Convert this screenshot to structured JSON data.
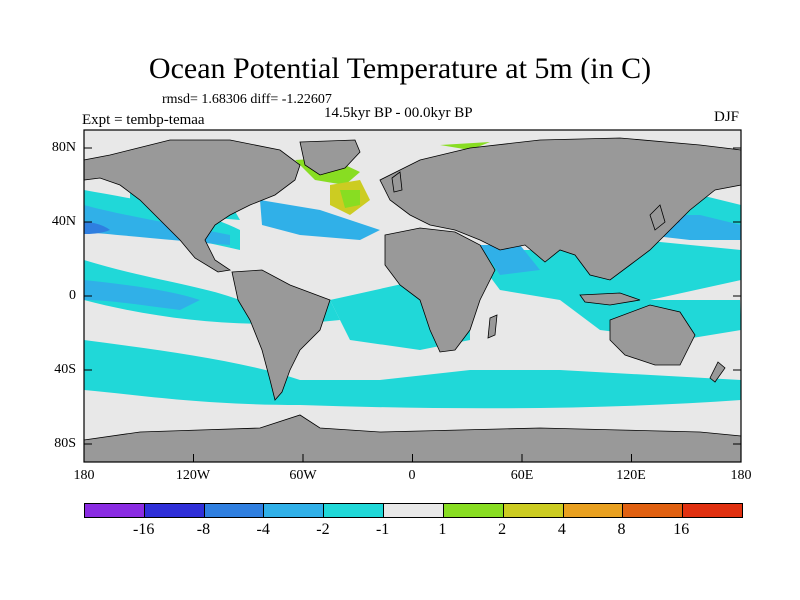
{
  "title": "Ocean Potential Temperature at 5m (in C)",
  "stats_line": "rmsd= 1.68306 diff= -1.22607",
  "left_label": "Expt = tembp-temaa",
  "center_label": "14.5kyr BP - 00.0kyr BP",
  "right_label": "DJF",
  "y_ticks": [
    "80N",
    "40N",
    "0",
    "40S",
    "80S"
  ],
  "x_ticks": [
    "180",
    "120W",
    "60W",
    "0",
    "60E",
    "120E",
    "180"
  ],
  "colors": {
    "land": "#999999",
    "ocean_neutral": "#e8e8e8",
    "colorbar": [
      "#8a2be2",
      "#2f2fd8",
      "#2f7fe0",
      "#30b0e8",
      "#20d8d8",
      "#e8e8e8",
      "#88dd22",
      "#cccc22",
      "#e8a020",
      "#e06010",
      "#e03010"
    ]
  },
  "colorbar_labels": [
    "-16",
    "-8",
    "-4",
    "-2",
    "-1",
    "1",
    "2",
    "4",
    "8",
    "16"
  ]
}
